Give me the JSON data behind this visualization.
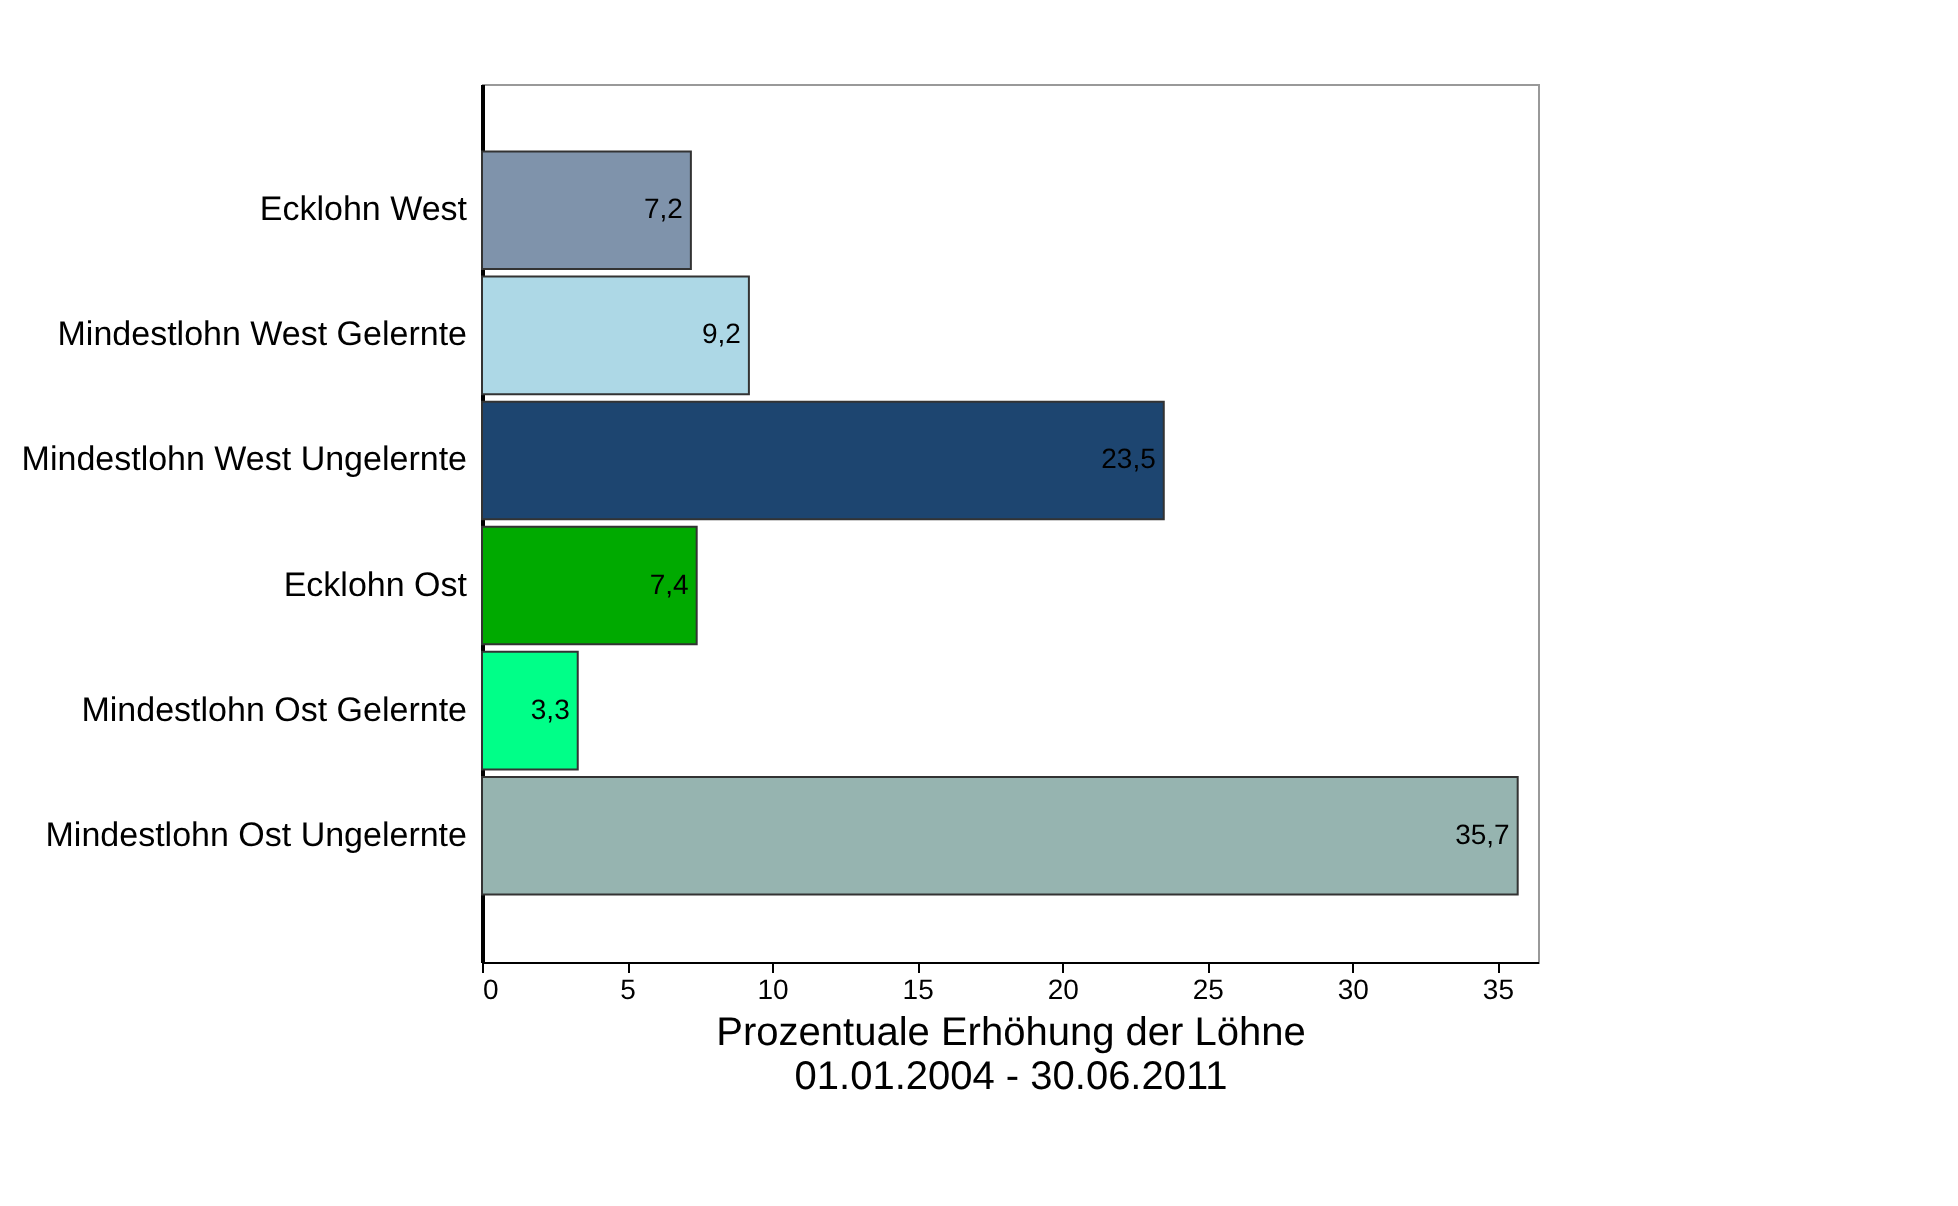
{
  "chart_data": {
    "type": "bar",
    "orientation": "horizontal",
    "xlabel": "Prozentuale Erhöhung der Löhne\n01.01.2004 - 30.06.2011",
    "categories": [
      "Ecklohn West",
      "Mindestlohn West Gelernte",
      "Mindestlohn West Ungelernte",
      "Ecklohn Ost",
      "Mindestlohn Ost Gelernte",
      "Mindestlohn Ost Ungelernte"
    ],
    "values": [
      7.2,
      9.2,
      23.5,
      7.4,
      3.3,
      35.7
    ],
    "value_labels": [
      "7,2",
      "9,2",
      "23,5",
      "7,4",
      "3,3",
      "35,7"
    ],
    "colors": [
      "#7f93ab",
      "#add8e6",
      "#1d4570",
      "#00aa00",
      "#00ff88",
      "#96b4b0"
    ],
    "xlim": [
      0,
      36.4
    ],
    "xticks": [
      0,
      5,
      10,
      15,
      20,
      25,
      30,
      35
    ],
    "grid": false
  }
}
